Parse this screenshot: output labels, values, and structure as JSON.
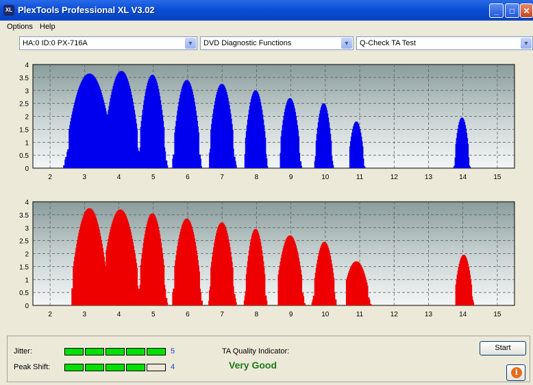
{
  "window": {
    "title": "PlexTools Professional XL V3.02",
    "icon": "XL",
    "minimize": "_",
    "maximize": "□",
    "close": "✕"
  },
  "menu": [
    "Options",
    "Help"
  ],
  "selectors": {
    "drive": "HA:0 ID:0  PX-716A",
    "function": "DVD Diagnostic Functions",
    "test": "Q-Check TA Test"
  },
  "colors": {
    "series1": "#0000ee",
    "series2": "#ee0000",
    "good": "#1a7a1a",
    "meter_on": "#00e000"
  },
  "chart_data": [
    {
      "type": "bar",
      "series": [
        {
          "name": "",
          "color": "#0000ee"
        }
      ],
      "xlim": [
        1.5,
        15.5
      ],
      "ylim": [
        0,
        4
      ],
      "xticks": [
        "2",
        "3",
        "4",
        "5",
        "6",
        "7",
        "8",
        "9",
        "10",
        "11",
        "12",
        "13",
        "14",
        "15"
      ],
      "yticks": [
        "0",
        "0.5",
        "1",
        "1.5",
        "2",
        "2.5",
        "3",
        "3.5",
        "4"
      ],
      "peaks": [
        {
          "center": 3.12,
          "height": 3.65,
          "from": 2.38,
          "to": 3.7
        },
        {
          "center": 4.05,
          "height": 3.75,
          "from": 3.62,
          "to": 4.62
        },
        {
          "center": 4.95,
          "height": 3.6,
          "from": 4.52,
          "to": 5.38
        },
        {
          "center": 5.95,
          "height": 3.4,
          "from": 5.55,
          "to": 6.38
        },
        {
          "center": 6.97,
          "height": 3.25,
          "from": 6.62,
          "to": 7.38
        },
        {
          "center": 7.95,
          "height": 3.0,
          "from": 7.65,
          "to": 8.3
        },
        {
          "center": 8.95,
          "height": 2.7,
          "from": 8.68,
          "to": 9.28
        },
        {
          "center": 9.93,
          "height": 2.5,
          "from": 9.68,
          "to": 10.2
        },
        {
          "center": 10.88,
          "height": 1.8,
          "from": 10.7,
          "to": 11.12
        },
        {
          "center": 13.95,
          "height": 1.95,
          "from": 13.72,
          "to": 14.18
        }
      ]
    },
    {
      "type": "bar",
      "series": [
        {
          "name": "",
          "color": "#ee0000"
        }
      ],
      "xlim": [
        1.5,
        15.5
      ],
      "ylim": [
        0,
        4
      ],
      "xticks": [
        "2",
        "3",
        "4",
        "5",
        "6",
        "7",
        "8",
        "9",
        "10",
        "11",
        "12",
        "13",
        "14",
        "15"
      ],
      "yticks": [
        "0",
        "0.5",
        "1",
        "1.5",
        "2",
        "2.5",
        "3",
        "3.5",
        "4"
      ],
      "peaks": [
        {
          "center": 3.12,
          "height": 3.75,
          "from": 2.62,
          "to": 3.7
        },
        {
          "center": 4.02,
          "height": 3.7,
          "from": 3.62,
          "to": 4.62
        },
        {
          "center": 4.95,
          "height": 3.55,
          "from": 4.58,
          "to": 5.38
        },
        {
          "center": 5.95,
          "height": 3.35,
          "from": 5.55,
          "to": 6.4
        },
        {
          "center": 6.97,
          "height": 3.2,
          "from": 6.6,
          "to": 7.38
        },
        {
          "center": 7.95,
          "height": 2.95,
          "from": 7.63,
          "to": 8.28
        },
        {
          "center": 8.95,
          "height": 2.7,
          "from": 8.62,
          "to": 9.38
        },
        {
          "center": 9.95,
          "height": 2.45,
          "from": 9.6,
          "to": 10.28
        },
        {
          "center": 10.88,
          "height": 1.7,
          "from": 10.6,
          "to": 11.3
        },
        {
          "center": 14.0,
          "height": 1.95,
          "from": 13.78,
          "to": 14.28
        }
      ]
    }
  ],
  "results": {
    "jitter_label": "Jitter:",
    "jitter_value": "5",
    "jitter_level": 5,
    "peak_label": "Peak Shift:",
    "peak_value": "4",
    "peak_level": 4,
    "meter_max": 5,
    "quality_label": "TA Quality Indicator:",
    "quality_value": "Very Good"
  },
  "buttons": {
    "start": "Start",
    "info": "i"
  }
}
